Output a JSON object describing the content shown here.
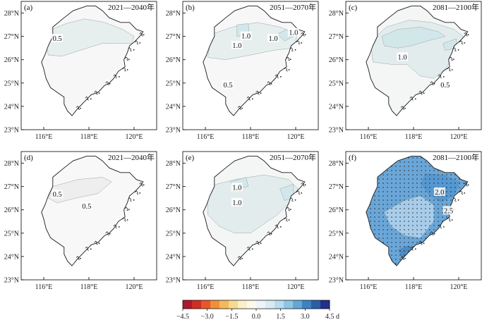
{
  "figure": {
    "latitude_ticks": [
      "28°N",
      "27°N",
      "26°N",
      "25°N",
      "24°N",
      "23°N"
    ],
    "longitude_ticks": [
      "116°E",
      "118°E",
      "120°E"
    ],
    "panels": [
      {
        "label": "(a)",
        "period": "2021—2040年",
        "contour_labels": [
          "0.5"
        ],
        "fills": {
          "base": "#f7f7f7",
          "zones": [
            {
              "level": 0.5,
              "color": "#e6eeee"
            }
          ]
        },
        "stippled": false
      },
      {
        "label": "(b)",
        "period": "2051—2070年",
        "contour_labels": [
          "1.0",
          "1.0",
          "1.0",
          "1.0",
          "0.5"
        ],
        "fills": {
          "base": "#f7f7f7",
          "zones": [
            {
              "level": 0.5,
              "color": "#e6eeee"
            },
            {
              "level": 1.0,
              "color": "#d2e7ea"
            }
          ]
        },
        "stippled": false
      },
      {
        "label": "(c)",
        "period": "2081—2100年",
        "contour_labels": [
          "1.0",
          "0.5"
        ],
        "fills": {
          "base": "#f4f6f6",
          "zones": [
            {
              "level": 0.5,
              "color": "#e3ecec"
            },
            {
              "level": 1.0,
              "color": "#d2e7ea"
            }
          ]
        },
        "stippled": false
      },
      {
        "label": "(d)",
        "period": "2021—2040年",
        "contour_labels": [
          "0.5",
          "0.5"
        ],
        "fills": {
          "base": "#f8f8f8",
          "zones": [
            {
              "level": 0.5,
              "color": "#eeeeee"
            }
          ]
        },
        "stippled": false
      },
      {
        "label": "(e)",
        "period": "2051—2070年",
        "contour_labels": [
          "1.0",
          "1.0"
        ],
        "fills": {
          "base": "#f4f6f6",
          "zones": [
            {
              "level": 0.5,
              "color": "#e3ecec"
            },
            {
              "level": 1.0,
              "color": "#d2e7ea"
            }
          ]
        },
        "stippled": false
      },
      {
        "label": "(f)",
        "period": "2081—2100年",
        "contour_labels": [
          "2.0",
          "2.5"
        ],
        "fills": {
          "base": "#6aa6d8",
          "zones": [
            {
              "level": 1.5,
              "color": "#a8cdea"
            },
            {
              "level": 2.0,
              "color": "#5598d1"
            },
            {
              "level": 2.5,
              "color": "#4a8dca"
            }
          ]
        },
        "stippled": true
      }
    ],
    "colorbar": {
      "tick_labels": [
        "−4.5",
        "−3.0",
        "−1.5",
        "0.0",
        "1.5",
        "3.0",
        "4.5 d"
      ],
      "colors": [
        "#b2182b",
        "#cf2f22",
        "#e8572a",
        "#f08f3a",
        "#f4b95a",
        "#f6da8e",
        "#fbefc9",
        "#fdf9ea",
        "#edf5f8",
        "#d7ebf2",
        "#b6dced",
        "#8ec5e4",
        "#64a7d6",
        "#3c83c2",
        "#2a5ea9",
        "#23308b"
      ]
    }
  }
}
